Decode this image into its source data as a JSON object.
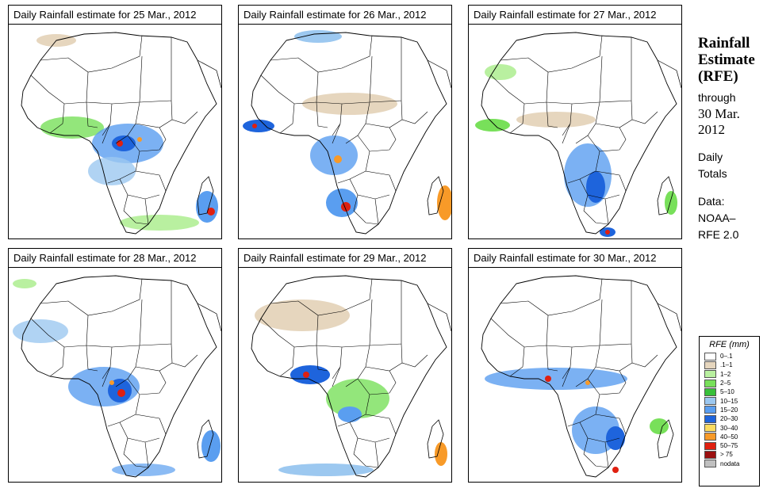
{
  "panels": [
    {
      "title": "Daily Rainfall estimate for  25 Mar., 2012"
    },
    {
      "title": "Daily Rainfall estimate for  26 Mar., 2012"
    },
    {
      "title": "Daily Rainfall estimate for  27 Mar., 2012"
    },
    {
      "title": "Daily Rainfall estimate for  28 Mar., 2012"
    },
    {
      "title": "Daily Rainfall estimate for  29 Mar., 2012"
    },
    {
      "title": "Daily Rainfall estimate for  30 Mar., 2012"
    }
  ],
  "side": {
    "title_line1": "Rainfall",
    "title_line2": "Estimate",
    "title_line3": "(RFE)",
    "through": "through",
    "date_line1": "30 Mar.",
    "date_line2": "2012",
    "daily_line1": "Daily",
    "daily_line2": "Totals",
    "data_line1": "Data:",
    "data_line2": "NOAA–",
    "data_line3": "RFE 2.0"
  },
  "legend": {
    "title": "RFE (mm)",
    "items": [
      {
        "label": "0–.1",
        "color": "#ffffff"
      },
      {
        "label": ".1–1",
        "color": "#e6d6be"
      },
      {
        "label": "1–2",
        "color": "#b9f0a0"
      },
      {
        "label": "2–5",
        "color": "#78e05a"
      },
      {
        "label": "5–10",
        "color": "#38c03a"
      },
      {
        "label": "10–15",
        "color": "#9cc8f0"
      },
      {
        "label": "15–20",
        "color": "#5a9ef0"
      },
      {
        "label": "20–30",
        "color": "#1e64dc"
      },
      {
        "label": "30–40",
        "color": "#fcdc60"
      },
      {
        "label": "40–50",
        "color": "#f89a28"
      },
      {
        "label": "50–75",
        "color": "#e02010"
      },
      {
        "label": "> 75",
        "color": "#9c1010"
      },
      {
        "label": "nodata",
        "color": "#c0c0c0"
      }
    ]
  }
}
